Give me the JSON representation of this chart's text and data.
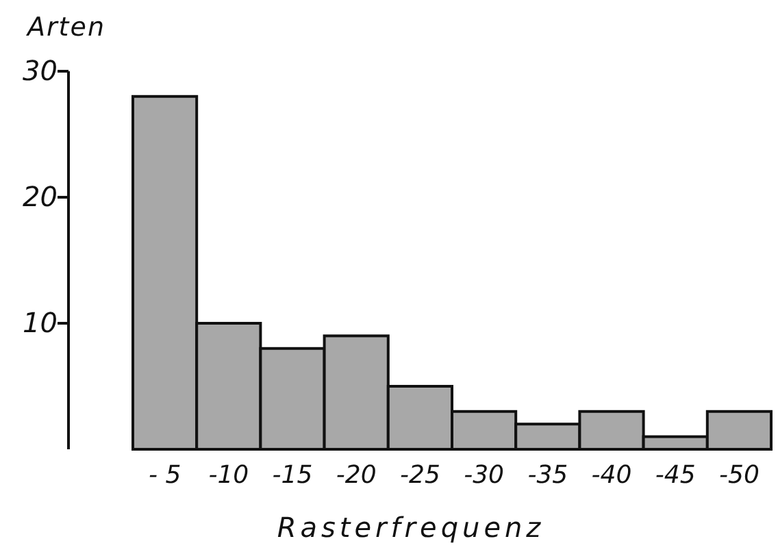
{
  "chart_data": {
    "type": "bar",
    "ylabel": "Arten",
    "xlabel": "Rasterfrequenz",
    "categories": [
      "- 5",
      "-10",
      "-15",
      "-20",
      "-25",
      "-30",
      "-35",
      "-40",
      "-45",
      "-50"
    ],
    "values": [
      28,
      10,
      8,
      9,
      5,
      3,
      2,
      3,
      1,
      3
    ],
    "color": "#a8a8a8",
    "ylim": [
      0,
      30
    ],
    "yticks": [
      10,
      20,
      30
    ],
    "grid": false
  }
}
